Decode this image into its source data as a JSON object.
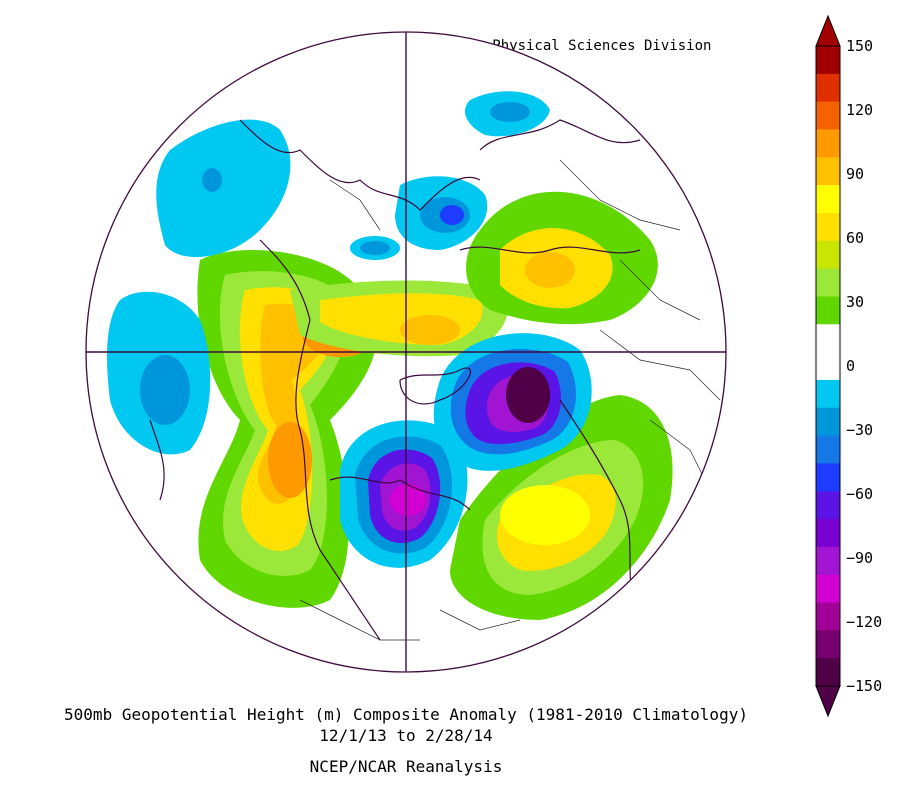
{
  "header": {
    "credit": "NOAA/ESRL Physical Sciences Division"
  },
  "footer": {
    "title": "500mb Geopotential Height (m) Composite Anomaly (1981-2010 Climatology)",
    "dates": "12/1/13  to 2/28/14",
    "source": "NCEP/NCAR Reanalysis"
  },
  "colorbar": {
    "bands": [
      {
        "color": "#a00000"
      },
      {
        "color": "#e03000"
      },
      {
        "color": "#f56200"
      },
      {
        "color": "#ff9900"
      },
      {
        "color": "#ffc000"
      },
      {
        "color": "#ffff00"
      },
      {
        "color": "#ffe000"
      },
      {
        "color": "#c8e600"
      },
      {
        "color": "#9be83a"
      },
      {
        "color": "#60d800"
      },
      {
        "color": "#ffffff"
      },
      {
        "color": "#ffffff"
      },
      {
        "color": "#00c8f0"
      },
      {
        "color": "#0096dc"
      },
      {
        "color": "#1478e6"
      },
      {
        "color": "#1e3cff"
      },
      {
        "color": "#5a14e6"
      },
      {
        "color": "#7800d2"
      },
      {
        "color": "#a014d2"
      },
      {
        "color": "#d200d2"
      },
      {
        "color": "#a00096"
      },
      {
        "color": "#78006e"
      },
      {
        "color": "#500046"
      }
    ],
    "labels": [
      "150",
      "120",
      "90",
      "60",
      "30",
      "0",
      "-30",
      "-60",
      "-90",
      "-120",
      "-150"
    ]
  },
  "map": {
    "projection": "north-polar-stereographic",
    "anomalies": [
      {
        "name": "north-atlantic-positive",
        "sign": "positive"
      },
      {
        "name": "northeast-pacific-positive",
        "sign": "positive"
      },
      {
        "name": "north-america-trough",
        "sign": "negative"
      },
      {
        "name": "siberia-trough",
        "sign": "negative"
      },
      {
        "name": "europe-ridge",
        "sign": "positive"
      },
      {
        "name": "central-asia-negative",
        "sign": "negative"
      }
    ]
  }
}
